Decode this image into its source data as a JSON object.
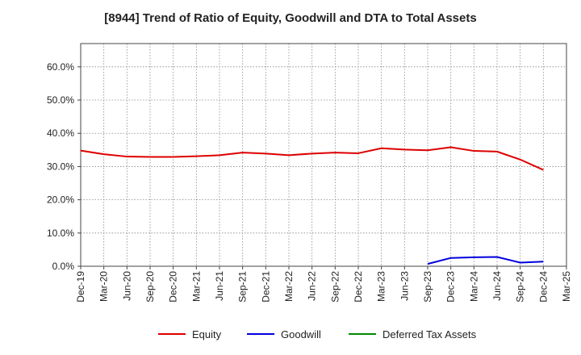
{
  "chart_data": {
    "type": "line",
    "title": "[8944]  Trend of Ratio of Equity, Goodwill and DTA to Total Assets",
    "xlabel": "",
    "ylabel": "",
    "ylim": [
      0,
      67
    ],
    "y_ticks": [
      0,
      10,
      20,
      30,
      40,
      50,
      60
    ],
    "y_tick_labels": [
      "0.0%",
      "10.0%",
      "20.0%",
      "30.0%",
      "40.0%",
      "50.0%",
      "60.0%"
    ],
    "categories": [
      "Dec-19",
      "Mar-20",
      "Jun-20",
      "Sep-20",
      "Dec-20",
      "Mar-21",
      "Jun-21",
      "Sep-21",
      "Dec-21",
      "Mar-22",
      "Jun-22",
      "Sep-22",
      "Dec-22",
      "Mar-23",
      "Jun-23",
      "Sep-23",
      "Dec-23",
      "Mar-24",
      "Jun-24",
      "Sep-24",
      "Dec-24",
      "Mar-25"
    ],
    "grid": true,
    "legend_position": "bottom",
    "series": [
      {
        "name": "Equity",
        "color": "#dd0000",
        "values": [
          34.8,
          33.7,
          33.0,
          32.9,
          32.9,
          33.1,
          33.4,
          34.2,
          33.9,
          33.4,
          33.9,
          34.2,
          34.0,
          35.5,
          35.1,
          34.9,
          35.8,
          34.7,
          34.5,
          32.1,
          29.0,
          null
        ]
      },
      {
        "name": "Goodwill",
        "color": "#0000dd",
        "values": [
          null,
          null,
          null,
          null,
          null,
          null,
          null,
          null,
          null,
          null,
          null,
          null,
          null,
          null,
          null,
          0.7,
          2.5,
          2.7,
          2.8,
          1.1,
          1.4,
          null
        ]
      },
      {
        "name": "Deferred Tax Assets",
        "color": "#008800",
        "values": [
          null,
          null,
          null,
          null,
          null,
          null,
          null,
          null,
          null,
          null,
          null,
          null,
          null,
          null,
          null,
          null,
          null,
          null,
          null,
          null,
          null,
          null
        ]
      }
    ]
  }
}
